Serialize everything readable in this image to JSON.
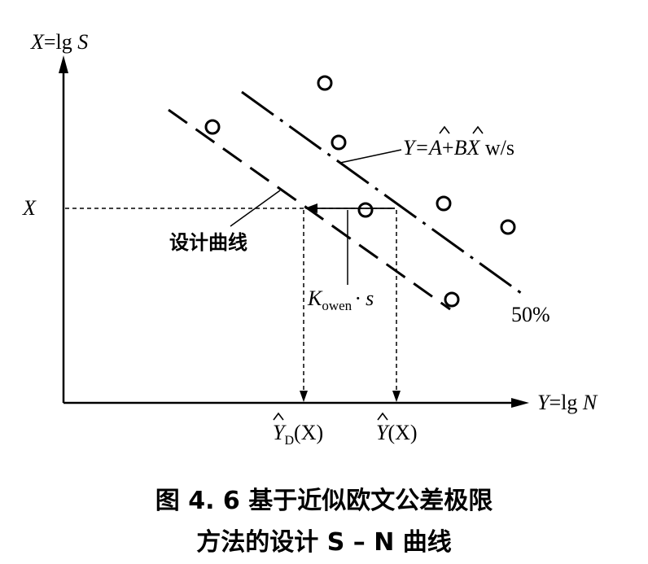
{
  "axes": {
    "y_axis_label": "X=lg S",
    "x_axis_label": "Y=lg N",
    "x_marker": "X"
  },
  "labels": {
    "mean_line_eq_prefix": "Y=",
    "mean_line_eq_A": "A",
    "mean_line_eq_plus": "+",
    "mean_line_eq_B": "B",
    "mean_line_eq_X": "X",
    "mean_line_eq_suffix": " w/s",
    "percent": "50%",
    "design_curve": "设计曲线",
    "kowen_K": "K",
    "kowen_sub": "owen",
    "kowen_s": "· s",
    "yd_Y": "Y",
    "yd_sub": "D",
    "yd_arg": "(X)",
    "yhat_Y": "Y",
    "yhat_arg": "(X)"
  },
  "caption": {
    "line1": "图 4. 6   基于近似欧文公差极限",
    "line2": "方法的设计 S – N 曲线"
  }
}
